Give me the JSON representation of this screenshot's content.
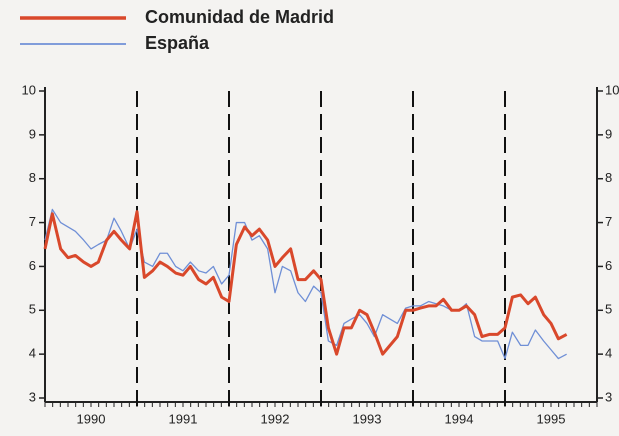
{
  "chart_data": {
    "type": "line",
    "series": [
      {
        "name": "Comunidad de Madrid",
        "color": "#d9482b",
        "width": 3,
        "values": [
          6.4,
          7.2,
          6.4,
          6.2,
          6.25,
          6.1,
          6.0,
          6.1,
          6.6,
          6.8,
          6.6,
          6.4,
          7.25,
          5.75,
          5.9,
          6.1,
          6.0,
          5.85,
          5.8,
          6.0,
          5.7,
          5.6,
          5.75,
          5.3,
          5.2,
          6.5,
          6.9,
          6.7,
          6.85,
          6.6,
          6.0,
          6.2,
          6.4,
          5.7,
          5.7,
          5.9,
          5.7,
          4.6,
          4.0,
          4.6,
          4.6,
          5.0,
          4.9,
          4.5,
          4.0,
          4.2,
          4.4,
          5.0,
          5.0,
          5.05,
          5.1,
          5.1,
          5.25,
          5.0,
          5.0,
          5.1,
          4.9,
          4.4,
          4.45,
          4.45,
          4.6,
          5.3,
          5.35,
          5.15,
          5.3,
          4.9,
          4.7,
          4.35,
          4.45
        ]
      },
      {
        "name": "España",
        "color": "#6f8fd6",
        "width": 1.3,
        "values": [
          6.6,
          7.3,
          7.0,
          6.9,
          6.8,
          6.6,
          6.4,
          6.5,
          6.6,
          7.1,
          6.8,
          6.4,
          6.85,
          6.1,
          6.0,
          6.3,
          6.3,
          6.0,
          5.9,
          6.1,
          5.9,
          5.85,
          6.0,
          5.6,
          5.8,
          7.0,
          7.0,
          6.6,
          6.7,
          6.4,
          5.4,
          6.0,
          5.9,
          5.4,
          5.2,
          5.55,
          5.4,
          4.3,
          4.2,
          4.7,
          4.8,
          4.9,
          4.7,
          4.4,
          4.9,
          4.8,
          4.7,
          5.05,
          5.1,
          5.1,
          5.2,
          5.15,
          5.1,
          5.0,
          5.0,
          5.15,
          4.4,
          4.3,
          4.3,
          4.3,
          3.9,
          4.5,
          4.2,
          4.2,
          4.55,
          4.3,
          4.1,
          3.9,
          4.0
        ]
      }
    ],
    "x": [
      1990,
      1990.08,
      1990.17,
      1990.25,
      1990.33,
      1990.42,
      1990.5,
      1990.58,
      1990.67,
      1990.75,
      1990.83,
      1990.92,
      1991,
      1991.08,
      1991.17,
      1991.25,
      1991.33,
      1991.42,
      1991.5,
      1991.58,
      1991.67,
      1991.75,
      1991.83,
      1991.92,
      1992,
      1992.08,
      1992.17,
      1992.25,
      1992.33,
      1992.42,
      1992.5,
      1992.58,
      1992.67,
      1992.75,
      1992.83,
      1992.92,
      1993,
      1993.08,
      1993.17,
      1993.25,
      1993.33,
      1993.42,
      1993.5,
      1993.58,
      1993.67,
      1993.75,
      1993.83,
      1993.92,
      1994,
      1994.08,
      1994.17,
      1994.25,
      1994.33,
      1994.42,
      1994.5,
      1994.58,
      1994.67,
      1994.75,
      1994.83,
      1994.92,
      1995,
      1995.08,
      1995.17,
      1995.25,
      1995.33,
      1995.42,
      1995.5,
      1995.58,
      1995.67
    ],
    "xlim": [
      1990,
      1996
    ],
    "xticks": [
      {
        "value": 1990.5,
        "label": "1990"
      },
      {
        "value": 1991.5,
        "label": "1991"
      },
      {
        "value": 1992.5,
        "label": "1992"
      },
      {
        "value": 1993.5,
        "label": "1993"
      },
      {
        "value": 1994.5,
        "label": "1994"
      },
      {
        "value": 1995.5,
        "label": "1995"
      }
    ],
    "year_separators": [
      1991,
      1992,
      1993,
      1994,
      1995
    ],
    "ylim": [
      3,
      10
    ],
    "yticks": [
      3,
      4,
      5,
      6,
      7,
      8,
      9,
      10
    ],
    "right_axis": true
  }
}
